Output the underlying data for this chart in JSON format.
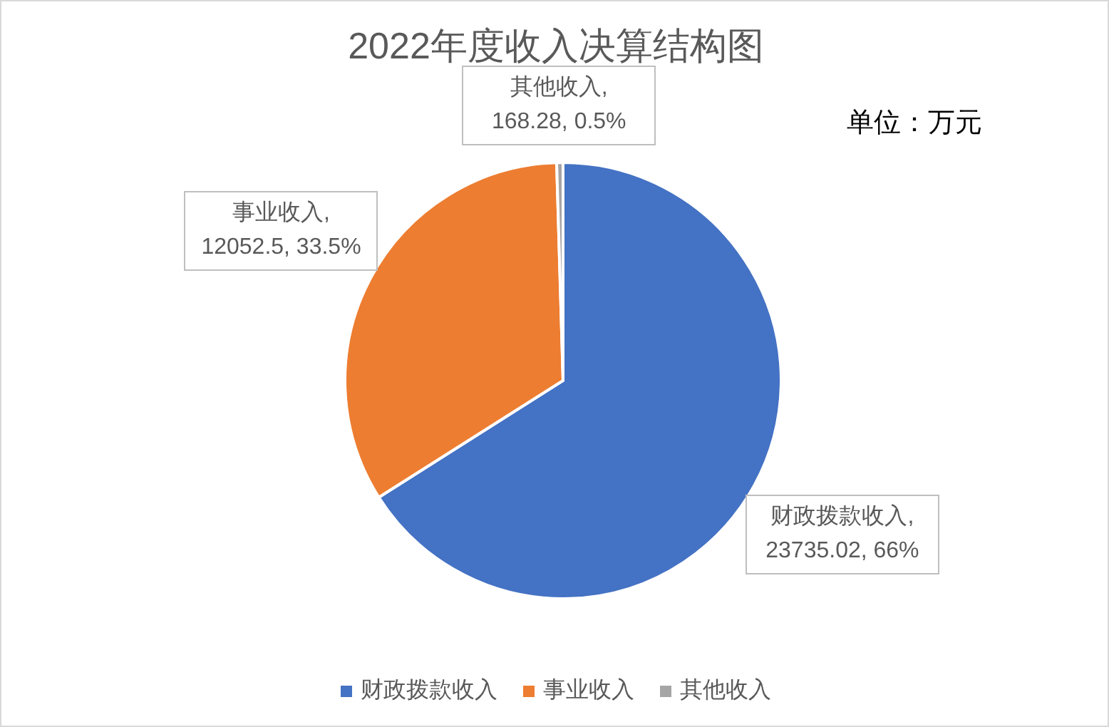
{
  "chart_data": {
    "type": "pie",
    "title": "2022年度收入决算结构图",
    "categories": [
      "财政拨款收入",
      "事业收入",
      "其他收入"
    ],
    "values": [
      23735.02,
      12052.5,
      168.28
    ],
    "colors": [
      "#4472c4",
      "#ed7d31",
      "#a5a5a5"
    ],
    "value_labels": [
      "财政拨款收入, 23735.02, 66%",
      "事业收入, 12052.5, 33.5%",
      "其他收入, 168.28, 0.5%"
    ],
    "legend": "bottom",
    "annotations": [
      "单位：万元"
    ]
  }
}
